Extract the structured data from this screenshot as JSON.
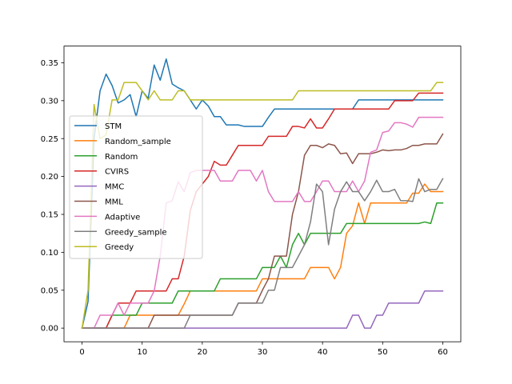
{
  "chart_data": {
    "type": "line",
    "title": "",
    "xlabel": "",
    "ylabel": "",
    "xlim": [
      -3,
      63
    ],
    "ylim": [
      -0.018,
      0.372
    ],
    "x_ticks": [
      0,
      10,
      20,
      30,
      40,
      50,
      60
    ],
    "y_ticks": [
      0.0,
      0.05,
      0.1,
      0.15,
      0.2,
      0.25,
      0.3,
      0.35
    ],
    "x_tick_labels": [
      "0",
      "10",
      "20",
      "30",
      "40",
      "50",
      "60"
    ],
    "y_tick_labels": [
      "0.00",
      "0.05",
      "0.10",
      "0.15",
      "0.20",
      "0.25",
      "0.30",
      "0.35"
    ],
    "grid": false,
    "legend_position": "center-left",
    "x": [
      0,
      1,
      2,
      3,
      4,
      5,
      6,
      7,
      8,
      9,
      10,
      11,
      12,
      13,
      14,
      15,
      16,
      17,
      18,
      19,
      20,
      21,
      22,
      23,
      24,
      25,
      26,
      27,
      28,
      29,
      30,
      31,
      32,
      33,
      34,
      35,
      36,
      37,
      38,
      39,
      40,
      41,
      42,
      43,
      44,
      45,
      46,
      47,
      48,
      49,
      50,
      51,
      52,
      53,
      54,
      55,
      56,
      57,
      58,
      59,
      60
    ],
    "series": [
      {
        "name": "STM",
        "color": "#1f77b4",
        "values": [
          0,
          0.035,
          0.25,
          0.313,
          0.335,
          0.32,
          0.297,
          0.301,
          0.308,
          0.279,
          0.313,
          0.303,
          0.347,
          0.327,
          0.355,
          0.322,
          0.317,
          0.313,
          0.301,
          0.289,
          0.301,
          0.293,
          0.279,
          0.279,
          0.268,
          0.268,
          0.268,
          0.266,
          0.266,
          0.266,
          0.266,
          0.278,
          0.289,
          0.289,
          0.289,
          0.289,
          0.289,
          0.289,
          0.289,
          0.289,
          0.289,
          0.289,
          0.289,
          0.289,
          0.289,
          0.289,
          0.301,
          0.301,
          0.301,
          0.301,
          0.301,
          0.301,
          0.301,
          0.301,
          0.301,
          0.301,
          0.301,
          0.301,
          0.301,
          0.301,
          0.301
        ]
      },
      {
        "name": "Random_sample",
        "color": "#ff7f0e",
        "values": [
          0,
          0,
          0,
          0,
          0,
          0,
          0,
          0,
          0.017,
          0.017,
          0.017,
          0.017,
          0.017,
          0.017,
          0.017,
          0.017,
          0.017,
          0.032,
          0.049,
          0.049,
          0.049,
          0.049,
          0.049,
          0.049,
          0.049,
          0.049,
          0.049,
          0.049,
          0.049,
          0.049,
          0.065,
          0.065,
          0.065,
          0.065,
          0.065,
          0.065,
          0.065,
          0.065,
          0.08,
          0.08,
          0.08,
          0.08,
          0.065,
          0.08,
          0.125,
          0.135,
          0.165,
          0.138,
          0.165,
          0.165,
          0.165,
          0.165,
          0.165,
          0.165,
          0.165,
          0.178,
          0.178,
          0.19,
          0.18,
          0.18,
          0.18
        ]
      },
      {
        "name": "Random",
        "color": "#2ca02c",
        "values": [
          0,
          0,
          0,
          0,
          0,
          0.017,
          0.017,
          0.017,
          0.017,
          0.017,
          0.033,
          0.033,
          0.033,
          0.033,
          0.033,
          0.033,
          0.049,
          0.049,
          0.049,
          0.049,
          0.049,
          0.049,
          0.049,
          0.065,
          0.065,
          0.065,
          0.065,
          0.065,
          0.065,
          0.065,
          0.08,
          0.08,
          0.08,
          0.095,
          0.08,
          0.11,
          0.125,
          0.11,
          0.125,
          0.125,
          0.125,
          0.125,
          0.125,
          0.125,
          0.138,
          0.138,
          0.138,
          0.138,
          0.138,
          0.138,
          0.138,
          0.138,
          0.138,
          0.138,
          0.138,
          0.138,
          0.138,
          0.14,
          0.138,
          0.165,
          0.165
        ]
      },
      {
        "name": "CVIRS",
        "color": "#d62728",
        "values": [
          0,
          0,
          0,
          0,
          0,
          0.017,
          0.033,
          0.033,
          0.033,
          0.049,
          0.049,
          0.049,
          0.049,
          0.049,
          0.049,
          0.065,
          0.065,
          0.095,
          0.155,
          0.18,
          0.19,
          0.2,
          0.22,
          0.215,
          0.215,
          0.228,
          0.241,
          0.241,
          0.241,
          0.241,
          0.241,
          0.253,
          0.253,
          0.253,
          0.253,
          0.266,
          0.266,
          0.264,
          0.276,
          0.264,
          0.264,
          0.276,
          0.289,
          0.289,
          0.289,
          0.289,
          0.289,
          0.289,
          0.289,
          0.289,
          0.289,
          0.289,
          0.3,
          0.3,
          0.3,
          0.3,
          0.31,
          0.31,
          0.31,
          0.31,
          0.31
        ]
      },
      {
        "name": "MMC",
        "color": "#9467bd",
        "values": [
          0,
          0,
          0,
          0,
          0,
          0,
          0,
          0,
          0,
          0,
          0,
          0,
          0,
          0,
          0,
          0,
          0,
          0,
          0,
          0,
          0,
          0,
          0,
          0,
          0,
          0,
          0,
          0,
          0,
          0,
          0,
          0,
          0,
          0,
          0,
          0,
          0,
          0,
          0,
          0,
          0,
          0,
          0,
          0,
          0,
          0.017,
          0.017,
          0,
          0,
          0.017,
          0.017,
          0.033,
          0.033,
          0.033,
          0.033,
          0.033,
          0.033,
          0.049,
          0.049,
          0.049,
          0.049
        ]
      },
      {
        "name": "MML",
        "color": "#8c564b",
        "values": [
          0,
          0,
          0,
          0,
          0,
          0,
          0,
          0,
          0,
          0,
          0,
          0,
          0.017,
          0.017,
          0.017,
          0.017,
          0.017,
          0.017,
          0.017,
          0.017,
          0.017,
          0.017,
          0.017,
          0.017,
          0.017,
          0.017,
          0.033,
          0.033,
          0.033,
          0.033,
          0.05,
          0.065,
          0.095,
          0.095,
          0.095,
          0.15,
          0.18,
          0.228,
          0.241,
          0.241,
          0.238,
          0.243,
          0.241,
          0.23,
          0.231,
          0.217,
          0.23,
          0.23,
          0.23,
          0.232,
          0.235,
          0.234,
          0.235,
          0.235,
          0.237,
          0.241,
          0.241,
          0.243,
          0.243,
          0.243,
          0.256
        ]
      },
      {
        "name": "Adaptive",
        "color": "#e377c2",
        "values": [
          0,
          0,
          0,
          0.017,
          0.017,
          0.017,
          0.033,
          0.017,
          0.033,
          0.033,
          0.033,
          0.033,
          0.049,
          0.095,
          0.165,
          0.168,
          0.193,
          0.18,
          0.205,
          0.208,
          0.208,
          0.208,
          0.208,
          0.194,
          0.194,
          0.194,
          0.208,
          0.208,
          0.208,
          0.194,
          0.208,
          0.18,
          0.167,
          0.167,
          0.167,
          0.167,
          0.18,
          0.167,
          0.167,
          0.18,
          0.194,
          0.194,
          0.18,
          0.18,
          0.18,
          0.194,
          0.18,
          0.194,
          0.232,
          0.235,
          0.258,
          0.26,
          0.271,
          0.271,
          0.269,
          0.265,
          0.278,
          0.278,
          0.278,
          0.278,
          0.278
        ]
      },
      {
        "name": "Greedy_sample",
        "color": "#7f7f7f",
        "values": [
          0,
          0,
          0,
          0,
          0,
          0,
          0,
          0,
          0,
          0,
          0,
          0,
          0,
          0,
          0,
          0,
          0,
          0,
          0.017,
          0.017,
          0.017,
          0.017,
          0.017,
          0.017,
          0.017,
          0.017,
          0.033,
          0.033,
          0.033,
          0.033,
          0.033,
          0.05,
          0.05,
          0.08,
          0.08,
          0.08,
          0.095,
          0.11,
          0.14,
          0.19,
          0.18,
          0.11,
          0.157,
          0.18,
          0.193,
          0.18,
          0.18,
          0.168,
          0.18,
          0.195,
          0.18,
          0.18,
          0.183,
          0.168,
          0.168,
          0.167,
          0.197,
          0.18,
          0.183,
          0.183,
          0.197
        ]
      },
      {
        "name": "Greedy",
        "color": "#bcbd22",
        "values": [
          0,
          0.05,
          0.295,
          0.25,
          0.255,
          0.301,
          0.301,
          0.324,
          0.324,
          0.324,
          0.313,
          0.301,
          0.313,
          0.301,
          0.301,
          0.301,
          0.313,
          0.313,
          0.301,
          0.301,
          0.301,
          0.301,
          0.301,
          0.301,
          0.301,
          0.301,
          0.301,
          0.301,
          0.301,
          0.301,
          0.301,
          0.301,
          0.301,
          0.301,
          0.301,
          0.301,
          0.313,
          0.313,
          0.313,
          0.313,
          0.313,
          0.313,
          0.313,
          0.313,
          0.313,
          0.313,
          0.313,
          0.313,
          0.313,
          0.313,
          0.313,
          0.313,
          0.313,
          0.313,
          0.313,
          0.313,
          0.313,
          0.313,
          0.313,
          0.324,
          0.324
        ]
      }
    ]
  }
}
